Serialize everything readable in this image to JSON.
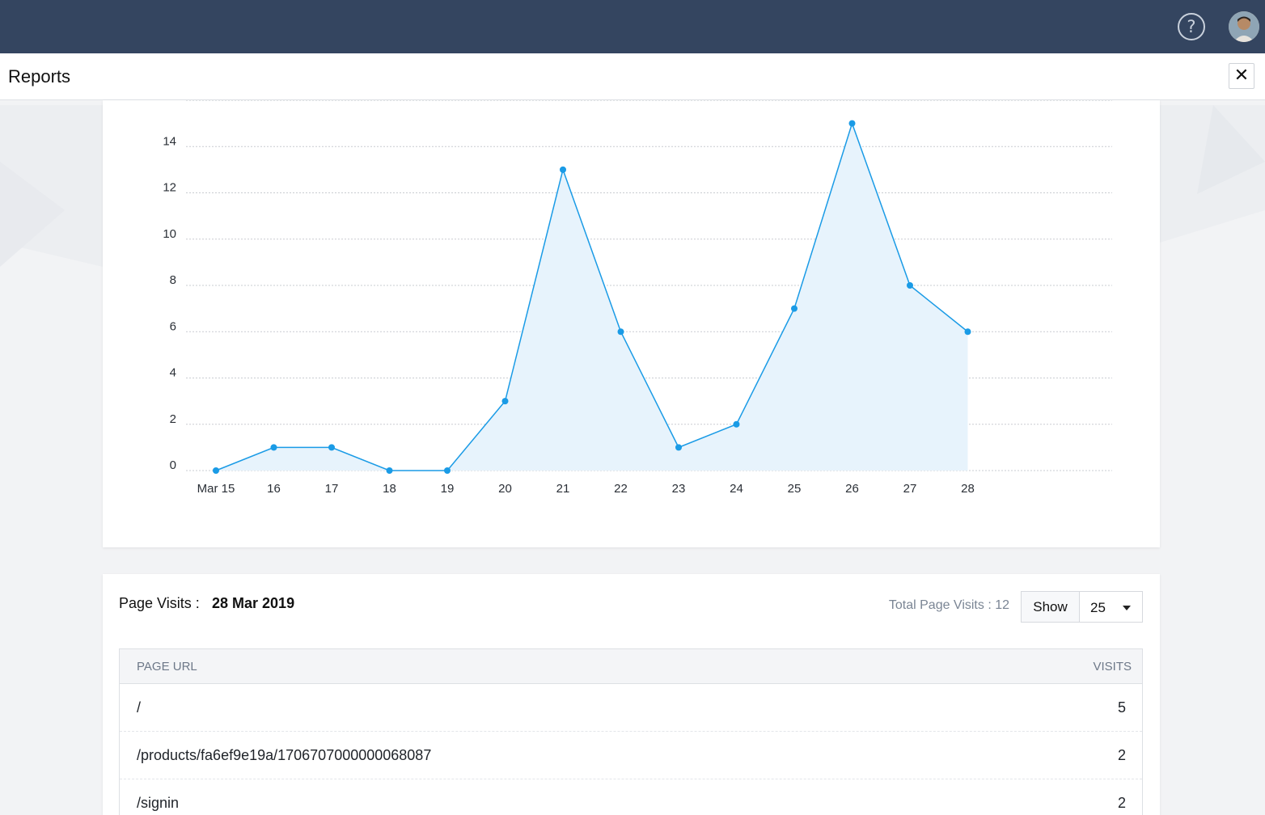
{
  "header": {
    "help_icon": "help-circle-icon",
    "help_glyph": "?",
    "avatar_icon": "user-avatar-icon"
  },
  "titlebar": {
    "title": "Reports",
    "close_icon": "close-icon",
    "close_glyph": "✕"
  },
  "colors": {
    "topbar": "#344560",
    "series_line": "#1a9be6",
    "series_fill": "#e7f3fc"
  },
  "chart_data": {
    "type": "area",
    "categories": [
      "Mar 15",
      "16",
      "17",
      "18",
      "19",
      "20",
      "21",
      "22",
      "23",
      "24",
      "25",
      "26",
      "27",
      "28"
    ],
    "values": [
      0,
      1,
      1,
      0,
      0,
      3,
      13,
      6,
      1,
      2,
      7,
      15,
      8,
      6
    ],
    "y_ticks": [
      0,
      2,
      4,
      6,
      8,
      10,
      12,
      14
    ],
    "ylim": [
      0,
      16
    ],
    "grid": "horizontal-dashed",
    "legend": "none"
  },
  "page_visits": {
    "label": "Page Visits :",
    "date": "28 Mar 2019",
    "total_label": "Total Page Visits : 12",
    "show_label": "Show",
    "show_value": "25",
    "dropdown_icon": "caret-down-icon"
  },
  "table": {
    "headers": {
      "url": "PAGE URL",
      "visits": "VISITS"
    },
    "rows": [
      {
        "url": "/",
        "visits": "5"
      },
      {
        "url": "/products/fa6ef9e19a/1706707000000068087",
        "visits": "2"
      },
      {
        "url": "/signin",
        "visits": "2"
      }
    ]
  }
}
